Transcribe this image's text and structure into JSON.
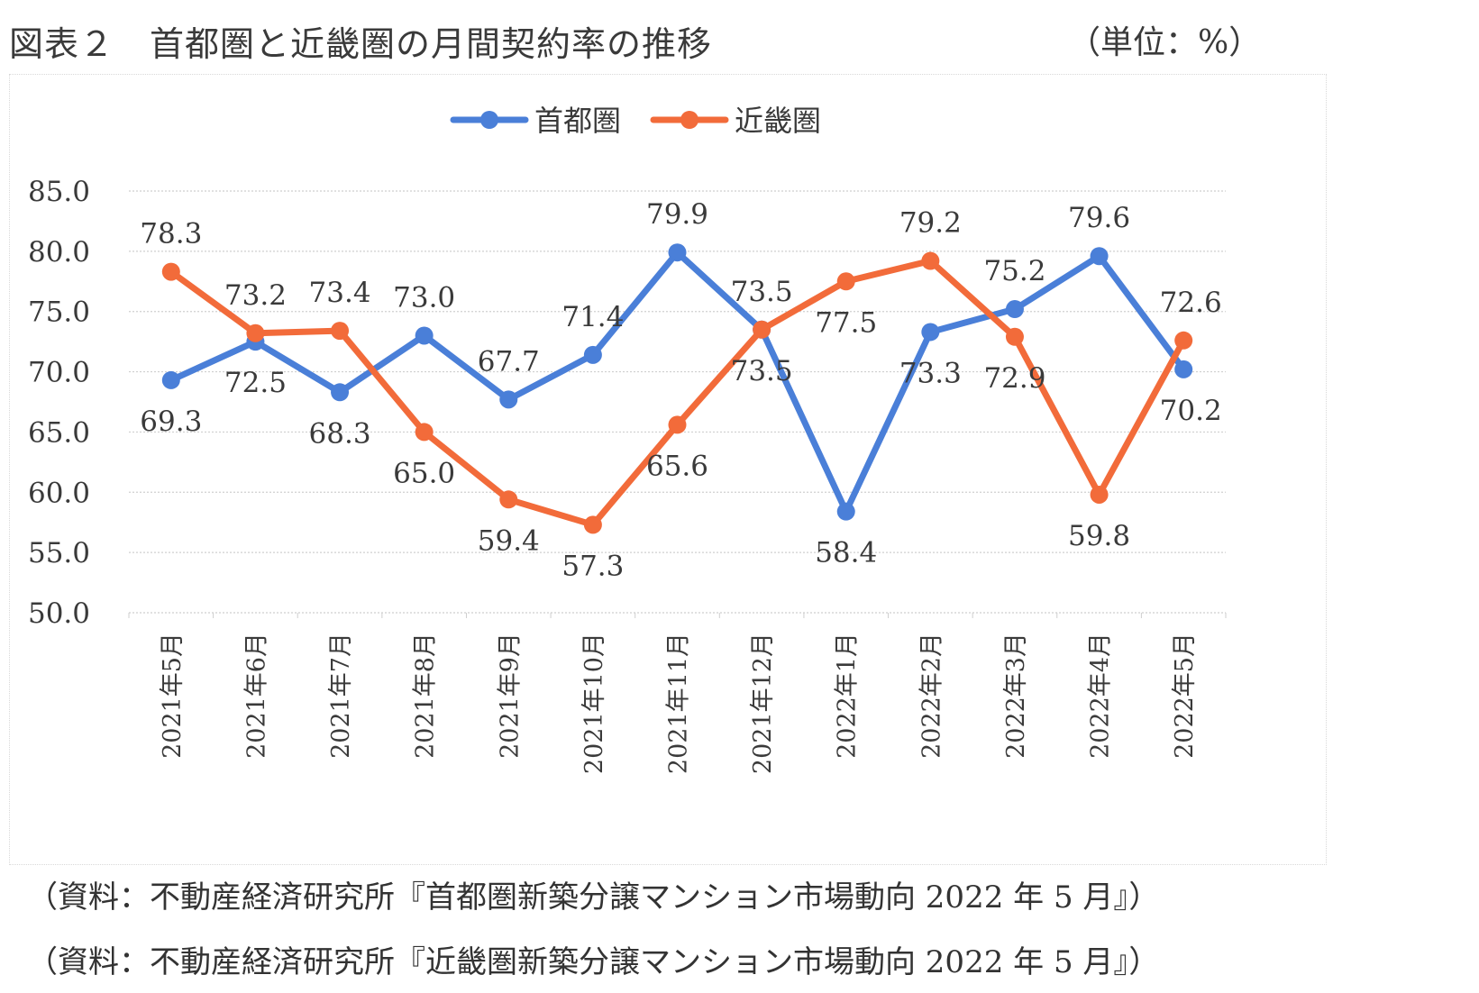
{
  "figure": {
    "title": "図表２　首都圏と近畿圏の月間契約率の推移",
    "unit": "（単位：%）"
  },
  "sources": [
    "（資料：不動産経済研究所『首都圏新築分譲マンション市場動向 2022 年 5 月』）",
    "（資料：不動産経済研究所『近畿圏新築分譲マンション市場動向 2022 年 5 月』）"
  ],
  "colors": {
    "tokyo": "#4a7fd8",
    "kinki": "#f26b3a",
    "grid": "#cfcfcf",
    "text": "#3a3a3a"
  },
  "chart_data": {
    "type": "line",
    "title": "首都圏と近畿圏の月間契約率の推移",
    "xlabel": "",
    "ylabel": "",
    "unit": "%",
    "ylim": [
      50.0,
      85.0
    ],
    "yticks": [
      50.0,
      55.0,
      60.0,
      65.0,
      70.0,
      75.0,
      80.0,
      85.0
    ],
    "ytick_labels": [
      "50.0",
      "55.0",
      "60.0",
      "65.0",
      "70.0",
      "75.0",
      "80.0",
      "85.0"
    ],
    "grid": true,
    "legend_position": "top-center",
    "categories": [
      "2021年5月",
      "2021年6月",
      "2021年7月",
      "2021年8月",
      "2021年9月",
      "2021年10月",
      "2021年11月",
      "2021年12月",
      "2022年1月",
      "2022年2月",
      "2022年3月",
      "2022年4月",
      "2022年5月"
    ],
    "series": [
      {
        "name": "首都圏",
        "color": "#4a7fd8",
        "values": [
          69.3,
          72.5,
          68.3,
          73.0,
          67.7,
          71.4,
          79.9,
          73.5,
          58.4,
          73.3,
          75.2,
          79.6,
          70.2
        ],
        "labels": [
          "69.3",
          "72.5",
          "68.3",
          "73.0",
          "67.7",
          "71.4",
          "79.9",
          "73.5",
          "58.4",
          "73.3",
          "75.2",
          "79.6",
          "70.2"
        ],
        "label_side": [
          "below",
          "below",
          "below",
          "above",
          "above",
          "above",
          "above",
          "above",
          "below",
          "below",
          "above",
          "above",
          "below"
        ]
      },
      {
        "name": "近畿圏",
        "color": "#f26b3a",
        "values": [
          78.3,
          73.2,
          73.4,
          65.0,
          59.4,
          57.3,
          65.6,
          73.5,
          77.5,
          79.2,
          72.9,
          59.8,
          72.6
        ],
        "labels": [
          "78.3",
          "73.2",
          "73.4",
          "65.0",
          "59.4",
          "57.3",
          "65.6",
          "73.5",
          "77.5",
          "79.2",
          "72.9",
          "59.8",
          "72.6"
        ],
        "label_side": [
          "above",
          "above",
          "above",
          "below",
          "below",
          "below",
          "below",
          "below",
          "below",
          "above",
          "below",
          "below",
          "above"
        ]
      }
    ]
  }
}
